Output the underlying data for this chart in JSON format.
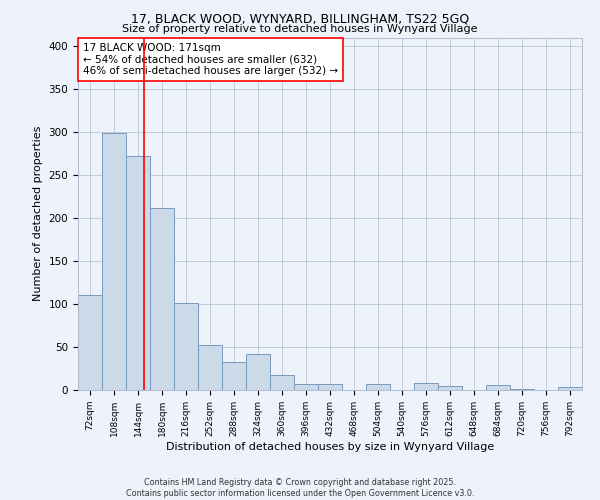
{
  "title1": "17, BLACK WOOD, WYNYARD, BILLINGHAM, TS22 5GQ",
  "title2": "Size of property relative to detached houses in Wynyard Village",
  "xlabel": "Distribution of detached houses by size in Wynyard Village",
  "ylabel": "Number of detached properties",
  "footnote": "Contains HM Land Registry data © Crown copyright and database right 2025.\nContains public sector information licensed under the Open Government Licence v3.0.",
  "bins": [
    72,
    108,
    144,
    180,
    216,
    252,
    288,
    324,
    360,
    396,
    432,
    468,
    504,
    540,
    576,
    612,
    648,
    684,
    720,
    756,
    792
  ],
  "values": [
    110,
    299,
    272,
    212,
    101,
    52,
    32,
    42,
    18,
    7,
    7,
    0,
    7,
    0,
    8,
    5,
    0,
    6,
    1,
    0,
    4
  ],
  "bar_color": "#ccd9e8",
  "bar_edge_color": "#7799bb",
  "red_line_x": 171,
  "annotation_title": "17 BLACK WOOD: 171sqm",
  "annotation_line1": "← 54% of detached houses are smaller (632)",
  "annotation_line2": "46% of semi-detached houses are larger (532) →",
  "ylim": [
    0,
    410
  ],
  "yticks": [
    0,
    50,
    100,
    150,
    200,
    250,
    300,
    350,
    400
  ],
  "background_color": "#eef2fb"
}
